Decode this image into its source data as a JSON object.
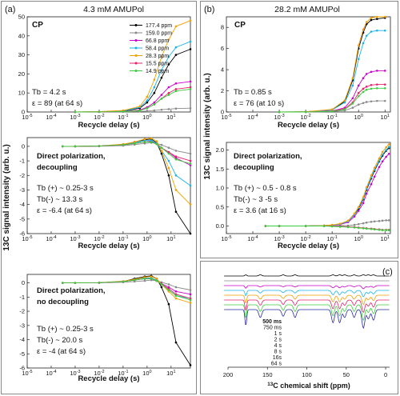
{
  "figure": {
    "panels": [
      {
        "tag": "(a)",
        "title": "4.3 mM AMUPol"
      },
      {
        "tag": "(b)",
        "title": "28.2 mM AMUPol"
      },
      {
        "tag": "(c)",
        "title": ""
      }
    ],
    "ylabel_a": "13C signal intensity (arb. u.)",
    "ylabel_b": "13C signal intensity (arb. u.)",
    "xlabel_delay": "Recycle delay (s)",
    "xlabel_shift": "13C chemical shift (ppm)"
  },
  "colors": {
    "177.4 ppm": "#000000",
    "159.0 ppm": "#8a8a8a",
    "66.8 ppm": "#cc00cc",
    "58.4 ppm": "#1ab4e8",
    "28.3 ppm": "#f2a000",
    "15.5 ppm": "#e8206a",
    "14.9 ppm": "#3ccc3c"
  },
  "spectrum_colors": [
    "#000000",
    "#8a8a8a",
    "#cc00cc",
    "#1ab4e8",
    "#f2a000",
    "#e8206a",
    "#3ccc3c",
    "#2a2aa8"
  ],
  "chart_data": [
    {
      "id": "a1",
      "type": "line",
      "panel": "(a)",
      "title": "CP",
      "annotations": [
        "Tb = 4.2 s",
        "ε = 89 (at 64 s)"
      ],
      "xlabel": "Recycle delay (s)",
      "x_scale": "log",
      "xlim": [
        1e-05,
        64
      ],
      "x_ticks": [
        "10-5",
        "10-4",
        "10-3",
        "10-2",
        "10-1",
        "100",
        "101"
      ],
      "ylim": [
        0,
        50
      ],
      "y_ticks": [
        "0",
        "10",
        "20",
        "30",
        "40",
        "50"
      ],
      "x": [
        0.001,
        0.01,
        0.1,
        0.5,
        1,
        2,
        4,
        8,
        16,
        64
      ],
      "legend": [
        "177.4 ppm",
        "159.0 ppm",
        "66.8 ppm",
        "58.4 ppm",
        "28.3 ppm",
        "15.5 ppm",
        "14.9 ppm"
      ],
      "series": [
        {
          "name": "177.4 ppm",
          "values": [
            0,
            0.1,
            0.4,
            2,
            5,
            10,
            18,
            25,
            30,
            33
          ]
        },
        {
          "name": "159.0 ppm",
          "values": [
            0,
            0,
            0.1,
            0.3,
            0.5,
            0.8,
            1.2,
            1.5,
            1.8,
            2
          ]
        },
        {
          "name": "66.8 ppm",
          "values": [
            0,
            0.1,
            0.2,
            1,
            2.5,
            5,
            9,
            13,
            15,
            16
          ]
        },
        {
          "name": "58.4 ppm",
          "values": [
            0,
            0.1,
            0.5,
            2.5,
            6,
            13,
            22,
            29,
            34,
            37
          ]
        },
        {
          "name": "28.3 ppm",
          "values": [
            0,
            0.2,
            0.8,
            3,
            8,
            17,
            29,
            38,
            45,
            48
          ]
        },
        {
          "name": "15.5 ppm",
          "values": [
            0,
            0.1,
            0.2,
            0.8,
            2,
            4,
            7,
            10,
            12,
            13
          ]
        },
        {
          "name": "14.9 ppm",
          "values": [
            0,
            0.1,
            0.2,
            0.7,
            2,
            4,
            7,
            9,
            11,
            12
          ]
        }
      ]
    },
    {
      "id": "a2",
      "type": "line",
      "panel": "(a)",
      "title": "",
      "annotations": [
        "Direct polarization,",
        "decoupling",
        "Tb (+) ~ 0.25-3 s",
        "Tb(-) ~ 13.3 s",
        "ε = -6.4 (at 64 s)"
      ],
      "xlabel": "Recycle delay (s)",
      "x_scale": "log",
      "xlim": [
        1e-05,
        64
      ],
      "x_ticks": [
        "10-5",
        "10-4",
        "10-3",
        "10-2",
        "10-1",
        "100",
        "101"
      ],
      "ylim": [
        -6,
        0.6
      ],
      "y_ticks": [
        "-6",
        "-5",
        "-4",
        "-3",
        "-2",
        "-1",
        "0"
      ],
      "x": [
        0.0003,
        0.001,
        0.01,
        0.1,
        0.3,
        0.8,
        1.5,
        2.5,
        4,
        8,
        16,
        64
      ],
      "series": [
        {
          "name": "177.4 ppm",
          "values": [
            0,
            0,
            0.02,
            0.1,
            0.3,
            0.45,
            0.5,
            0.25,
            -0.5,
            -2,
            -4.5,
            -6
          ]
        },
        {
          "name": "159.0 ppm",
          "values": [
            0,
            0,
            0.01,
            0.05,
            0.12,
            0.2,
            0.25,
            0.2,
            0.1,
            -0.1,
            -0.3,
            -0.5
          ]
        },
        {
          "name": "66.8 ppm",
          "values": [
            0,
            0,
            0.01,
            0.1,
            0.2,
            0.3,
            0.35,
            0.2,
            -0.1,
            -0.4,
            -0.8,
            -1.3
          ]
        },
        {
          "name": "58.4 ppm",
          "values": [
            0,
            0,
            0.02,
            0.1,
            0.25,
            0.4,
            0.4,
            0.2,
            -0.3,
            -1,
            -2,
            -2.7
          ]
        },
        {
          "name": "28.3 ppm",
          "values": [
            0,
            0,
            0.02,
            0.15,
            0.3,
            0.5,
            0.55,
            0.35,
            -0.3,
            -1.5,
            -3,
            -4
          ]
        },
        {
          "name": "15.5 ppm",
          "values": [
            0,
            0,
            0.02,
            0.1,
            0.2,
            0.3,
            0.3,
            0.15,
            -0.1,
            -0.4,
            -0.7,
            -1
          ]
        },
        {
          "name": "14.9 ppm",
          "values": [
            0,
            0,
            0.02,
            0.1,
            0.2,
            0.3,
            0.3,
            0.15,
            -0.1,
            -0.5,
            -0.9,
            -1.2
          ]
        }
      ]
    },
    {
      "id": "a3",
      "type": "line",
      "panel": "(a)",
      "title": "",
      "annotations": [
        "Direct polarization,",
        "no decoupling",
        "Tb (+) ~ 0.25-3 s",
        "Tb(-) ~ 20.0 s",
        "ε = -4 (at 64 s)"
      ],
      "xlabel": "Recycle delay (s)",
      "x_scale": "log",
      "xlim": [
        1e-05,
        64
      ],
      "x_ticks": [
        "10-5",
        "10-4",
        "10-3",
        "10-2",
        "10-1",
        "100",
        "101"
      ],
      "ylim": [
        -6,
        0.6
      ],
      "y_ticks": [
        "-6",
        "-5",
        "-4",
        "-3",
        "-2",
        "-1",
        "0"
      ],
      "x": [
        0.0003,
        0.001,
        0.01,
        0.1,
        0.3,
        0.8,
        1.5,
        2.5,
        4,
        8,
        16,
        64
      ],
      "series": [
        {
          "name": "177.4 ppm",
          "values": [
            0,
            0,
            0.02,
            0.1,
            0.3,
            0.45,
            0.5,
            0.3,
            -0.3,
            -1.5,
            -4.2,
            -5.8
          ]
        },
        {
          "name": "159.0 ppm",
          "values": [
            0,
            0,
            0.01,
            0.05,
            0.1,
            0.15,
            0.2,
            0.15,
            0.05,
            -0.1,
            -0.3,
            -0.5
          ]
        },
        {
          "name": "66.8 ppm",
          "values": [
            0,
            0,
            0.01,
            0.1,
            0.2,
            0.3,
            0.3,
            0.2,
            -0.05,
            -0.3,
            -0.6,
            -0.8
          ]
        },
        {
          "name": "58.4 ppm",
          "values": [
            0,
            0,
            0.02,
            0.1,
            0.2,
            0.35,
            0.35,
            0.2,
            -0.1,
            -0.5,
            -0.9,
            -1.1
          ]
        },
        {
          "name": "28.3 ppm",
          "values": [
            0,
            0,
            0.02,
            0.12,
            0.25,
            0.4,
            0.45,
            0.3,
            -0.1,
            -0.6,
            -1.1,
            -1.4
          ]
        },
        {
          "name": "15.5 ppm",
          "values": [
            0,
            0,
            0.02,
            0.1,
            0.2,
            0.3,
            0.3,
            0.15,
            -0.1,
            -0.4,
            -0.8,
            -1.1
          ]
        },
        {
          "name": "14.9 ppm",
          "values": [
            0,
            0,
            0.02,
            0.1,
            0.2,
            0.3,
            0.3,
            0.15,
            -0.1,
            -0.5,
            -0.9,
            -1.2
          ]
        }
      ]
    },
    {
      "id": "b1",
      "type": "line",
      "panel": "(b)",
      "title": "CP",
      "annotations": [
        "Tb = 0.85 s",
        "ε = 76 (at 10 s)"
      ],
      "xlabel": "Recycle delay (s)",
      "x_scale": "log",
      "xlim": [
        1e-05,
        16
      ],
      "x_ticks": [
        "10-5",
        "10-4",
        "10-3",
        "10-2",
        "10-1",
        "100",
        "101"
      ],
      "ylim": [
        0,
        9
      ],
      "y_ticks": [
        "0",
        "2",
        "4",
        "6",
        "8"
      ],
      "x": [
        0.001,
        0.01,
        0.1,
        0.3,
        0.6,
        1,
        1.5,
        2,
        3,
        5,
        10
      ],
      "series": [
        {
          "name": "177.4 ppm",
          "values": [
            0,
            0.02,
            0.2,
            1,
            3,
            6,
            7.5,
            8.3,
            8.7,
            8.8,
            8.9
          ]
        },
        {
          "name": "159.0 ppm",
          "values": [
            0,
            0,
            0.03,
            0.15,
            0.4,
            0.7,
            0.85,
            0.95,
            1,
            1.05,
            1.05
          ]
        },
        {
          "name": "66.8 ppm",
          "values": [
            0,
            0,
            0.1,
            0.4,
            1.3,
            2.5,
            3.2,
            3.6,
            3.8,
            3.9,
            3.9
          ]
        },
        {
          "name": "58.4 ppm",
          "values": [
            0,
            0.01,
            0.2,
            0.9,
            2.5,
            5,
            6.5,
            7.2,
            7.6,
            7.7,
            7.7
          ]
        },
        {
          "name": "28.3 ppm",
          "values": [
            0,
            0.02,
            0.25,
            1.1,
            3.2,
            6.3,
            7.8,
            8.5,
            8.9,
            9,
            9
          ]
        },
        {
          "name": "15.5 ppm",
          "values": [
            0,
            0,
            0.08,
            0.3,
            0.9,
            1.8,
            2.2,
            2.4,
            2.55,
            2.6,
            2.6
          ]
        },
        {
          "name": "14.9 ppm",
          "values": [
            0,
            0,
            0.06,
            0.25,
            0.8,
            1.5,
            1.9,
            2.1,
            2.2,
            2.25,
            2.25
          ]
        }
      ]
    },
    {
      "id": "b2",
      "type": "line",
      "panel": "(b)",
      "title": "",
      "annotations": [
        "Direct polarization,",
        "decoupling",
        "Tb (+) ~ 0.5 - 0.8 s",
        "Tb(-) ~ 3 -5 s",
        "ε = 3.6 (at 16 s)"
      ],
      "xlabel": "Recycle delay (s)",
      "x_scale": "log",
      "xlim": [
        1e-05,
        16
      ],
      "x_ticks": [
        "10-5",
        "10-4",
        "10-3",
        "10-2",
        "10-1",
        "100",
        "101"
      ],
      "ylim": [
        -0.2,
        2.2
      ],
      "y_ticks": [
        "0.0",
        "0.5",
        "1.0",
        "1.5",
        "2.0"
      ],
      "x": [
        0.0003,
        0.001,
        0.01,
        0.05,
        0.1,
        0.2,
        0.4,
        0.7,
        1,
        1.5,
        2,
        3,
        4,
        6,
        8,
        11,
        14
      ],
      "series": [
        {
          "name": "177.4 ppm",
          "values": [
            0,
            0,
            0,
            0.01,
            0.02,
            0.05,
            0.12,
            0.3,
            0.45,
            0.7,
            0.95,
            1.25,
            1.45,
            1.7,
            1.85,
            1.98,
            2.05
          ]
        },
        {
          "name": "159.0 ppm",
          "values": [
            0,
            0,
            0,
            0,
            0,
            0.01,
            0.01,
            0.03,
            0.05,
            0.07,
            0.09,
            0.11,
            0.12,
            0.13,
            0.14,
            0.15,
            0.15
          ]
        },
        {
          "name": "66.8 ppm",
          "values": [
            0,
            0,
            0,
            0.01,
            0.02,
            0.04,
            0.1,
            0.25,
            0.4,
            0.6,
            0.85,
            1.1,
            1.3,
            1.55,
            1.7,
            1.82,
            1.9
          ]
        },
        {
          "name": "58.4 ppm",
          "values": [
            0,
            0,
            0,
            0.01,
            0.02,
            0.05,
            0.12,
            0.3,
            0.48,
            0.72,
            0.98,
            1.28,
            1.48,
            1.72,
            1.88,
            2.0,
            2.08
          ]
        },
        {
          "name": "28.3 ppm",
          "values": [
            0,
            0,
            0,
            0.01,
            0.03,
            0.06,
            0.14,
            0.33,
            0.5,
            0.76,
            1.02,
            1.33,
            1.53,
            1.78,
            1.95,
            2.07,
            2.15
          ]
        },
        {
          "name": "15.5 ppm",
          "values": [
            0,
            0,
            0,
            0,
            0,
            -0.01,
            -0.02,
            -0.03,
            -0.04,
            -0.05,
            -0.06,
            -0.07,
            -0.08,
            -0.09,
            -0.1,
            -0.1,
            -0.1
          ]
        },
        {
          "name": "14.9 ppm",
          "values": [
            0,
            0,
            0,
            0,
            -0.01,
            -0.02,
            -0.03,
            -0.04,
            -0.05,
            -0.06,
            -0.07,
            -0.08,
            -0.09,
            -0.1,
            -0.11,
            -0.11,
            -0.11
          ]
        }
      ]
    },
    {
      "id": "c",
      "type": "line",
      "panel": "(c)",
      "title": "",
      "xlabel": "13C chemical shift (ppm)",
      "x_reversed": true,
      "xlim": [
        200,
        -5
      ],
      "x_ticks": [
        "200",
        "150",
        "100",
        "50",
        "0"
      ],
      "legend": [
        "500 ms",
        "750 ms",
        "1 s",
        "2 s",
        "4 s",
        "8 s",
        "16s",
        "64 s"
      ],
      "peaks_ppm": [
        177.4,
        159,
        130,
        115,
        66.8,
        58.4,
        52,
        40,
        28.3,
        22,
        15.5
      ]
    }
  ]
}
